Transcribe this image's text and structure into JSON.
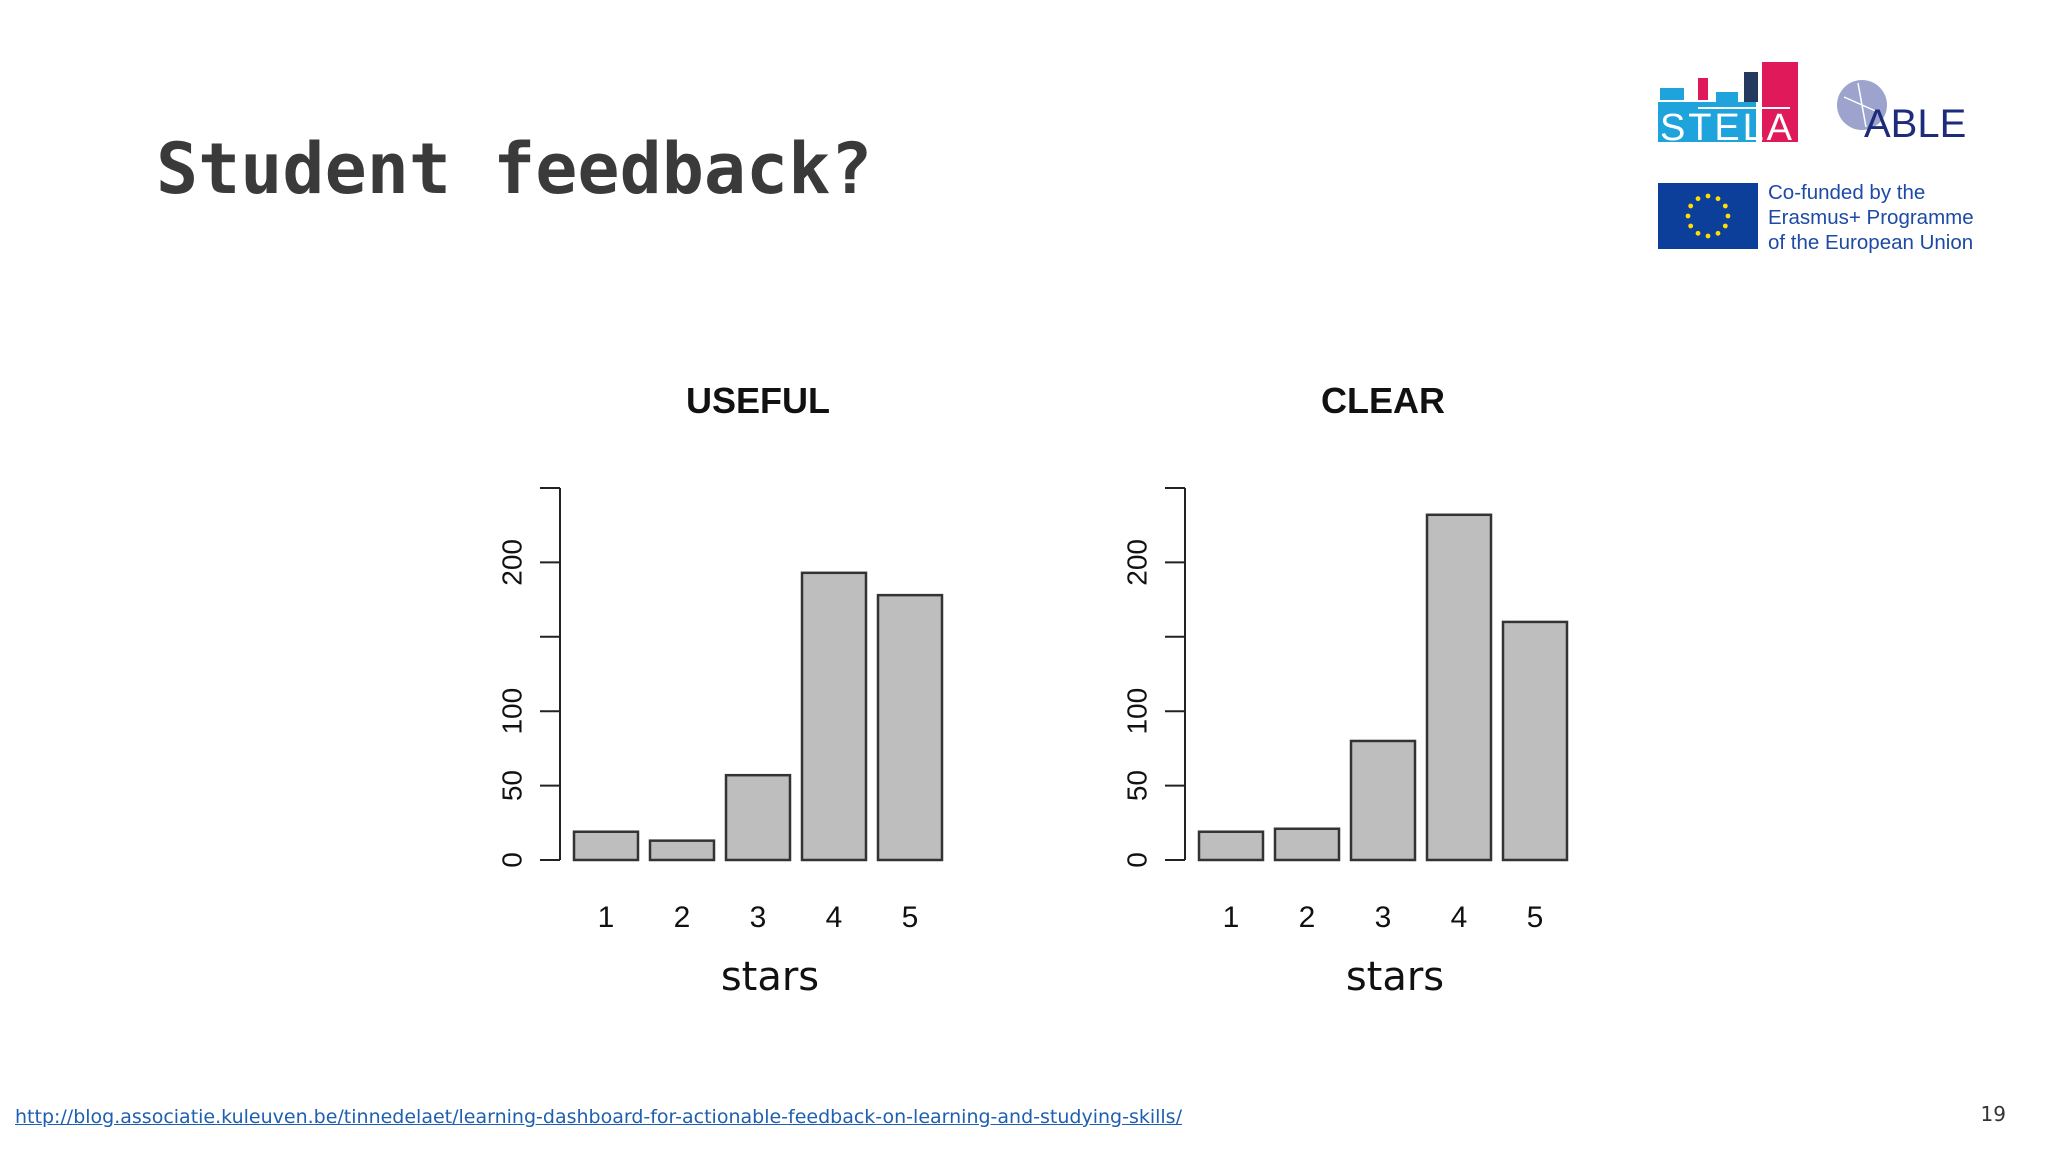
{
  "slide": {
    "title": "Student feedback?",
    "source_url": "http://blog.associatie.kuleuven.be/tinnedelaet/learning-dashboard-for-actionable-feedback-on-learning-and-studying-skills/",
    "page_number": "19"
  },
  "logos": {
    "stela": "STELA",
    "able": "ABLE",
    "eu_lines": [
      "Co-funded by the",
      "Erasmus+ Programme",
      "of the European Union"
    ]
  },
  "colors": {
    "title": "#3a3a3a",
    "bar_fill": "#bebebe",
    "bar_stroke": "#333333",
    "link": "#1f5fb0",
    "eu_blue": "#0b3f9a",
    "eu_star": "#ffdd00",
    "stela_cyan": "#1fa3dc",
    "stela_magenta": "#e0195a",
    "stela_navy": "#23395d",
    "able_navy": "#1d2b7a"
  },
  "chart_data": [
    {
      "type": "bar",
      "title": "USEFUL",
      "xlabel": "stars",
      "ylabel": "",
      "categories": [
        "1",
        "2",
        "3",
        "4",
        "5"
      ],
      "values": [
        19,
        13,
        57,
        193,
        178
      ],
      "ylim": [
        0,
        250
      ],
      "yticks": [
        0,
        50,
        100,
        150,
        200,
        250
      ],
      "ytick_labels": [
        "0",
        "50",
        "100",
        "",
        "200",
        ""
      ],
      "grid": false
    },
    {
      "type": "bar",
      "title": "CLEAR",
      "xlabel": "stars",
      "ylabel": "",
      "categories": [
        "1",
        "2",
        "3",
        "4",
        "5"
      ],
      "values": [
        19,
        21,
        80,
        232,
        160
      ],
      "ylim": [
        0,
        250
      ],
      "yticks": [
        0,
        50,
        100,
        150,
        200,
        250
      ],
      "ytick_labels": [
        "0",
        "50",
        "100",
        "",
        "200",
        ""
      ],
      "grid": false
    }
  ]
}
